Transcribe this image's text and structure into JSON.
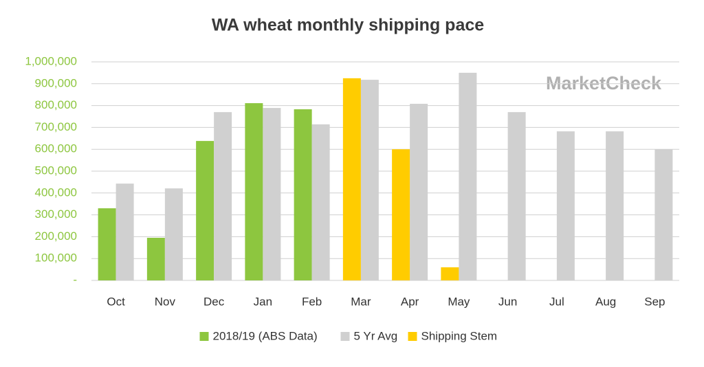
{
  "chart_data": {
    "type": "bar",
    "title": "WA wheat monthly shipping pace",
    "watermark": "MarketCheck",
    "categories": [
      "Oct",
      "Nov",
      "Dec",
      "Jan",
      "Feb",
      "Mar",
      "Apr",
      "May",
      "Jun",
      "Jul",
      "Aug",
      "Sep"
    ],
    "series": [
      {
        "name": "2018/19 (ABS Data)",
        "color": "#8dc63f",
        "values": [
          330000,
          195000,
          638000,
          811000,
          783000,
          null,
          null,
          null,
          null,
          null,
          null,
          null
        ]
      },
      {
        "name": "5 Yr Avg",
        "color": "#d0d0d0",
        "values": [
          443000,
          421000,
          770000,
          789000,
          714000,
          918000,
          808000,
          950000,
          770000,
          682000,
          682000,
          600000
        ]
      },
      {
        "name": "Shipping Stem",
        "color": "#ffcc00",
        "values": [
          null,
          null,
          null,
          null,
          null,
          925000,
          600000,
          60000,
          null,
          null,
          null,
          null
        ]
      }
    ],
    "ylim": [
      0,
      1000000
    ],
    "yticks": [
      {
        "value": 0,
        "label": "-"
      },
      {
        "value": 100000,
        "label": "100,000"
      },
      {
        "value": 200000,
        "label": "200,000"
      },
      {
        "value": 300000,
        "label": "300,000"
      },
      {
        "value": 400000,
        "label": "400,000"
      },
      {
        "value": 500000,
        "label": "500,000"
      },
      {
        "value": 600000,
        "label": "600,000"
      },
      {
        "value": 700000,
        "label": "700,000"
      },
      {
        "value": 800000,
        "label": "800,000"
      },
      {
        "value": 900000,
        "label": "900,000"
      },
      {
        "value": 1000000,
        "label": "1,000,000"
      }
    ],
    "grid": true,
    "legend": "bottom"
  }
}
